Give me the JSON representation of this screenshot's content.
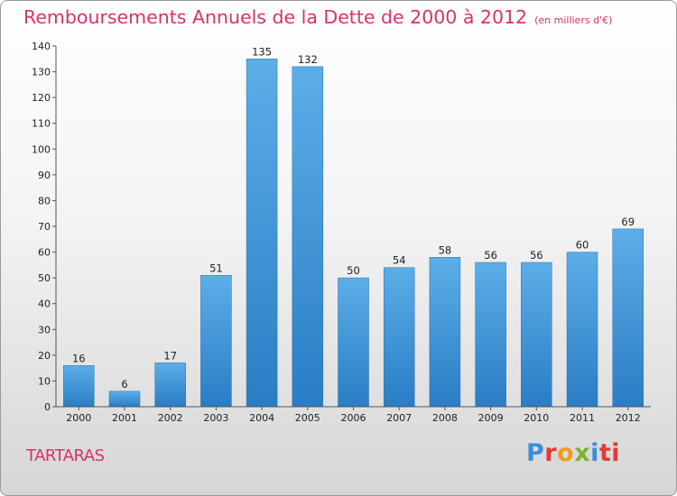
{
  "title": "Remboursements Annuels de la Dette de 2000 à 2012",
  "unit": "(en milliers d'€)",
  "commune": "TARTARAS",
  "logo": {
    "name": "Proxiti",
    "letters": [
      "P",
      "r",
      "o",
      "x",
      "i",
      "ti"
    ]
  },
  "colors": {
    "title": "#d6336c",
    "bar_top": "#5caee8",
    "bar_bottom": "#2a7dc4"
  },
  "chart_data": {
    "type": "bar",
    "categories": [
      "2000",
      "2001",
      "2002",
      "2003",
      "2004",
      "2005",
      "2006",
      "2007",
      "2008",
      "2009",
      "2010",
      "2011",
      "2012"
    ],
    "values": [
      16,
      6,
      17,
      51,
      135,
      132,
      50,
      54,
      58,
      56,
      56,
      60,
      69
    ],
    "title": "Remboursements Annuels de la Dette de 2000 à 2012",
    "xlabel": "",
    "ylabel": "",
    "ylim": [
      0,
      140
    ],
    "yticks": [
      0,
      10,
      20,
      30,
      40,
      50,
      60,
      70,
      80,
      90,
      100,
      110,
      120,
      130,
      140
    ],
    "grid": false,
    "data_labels": true
  }
}
